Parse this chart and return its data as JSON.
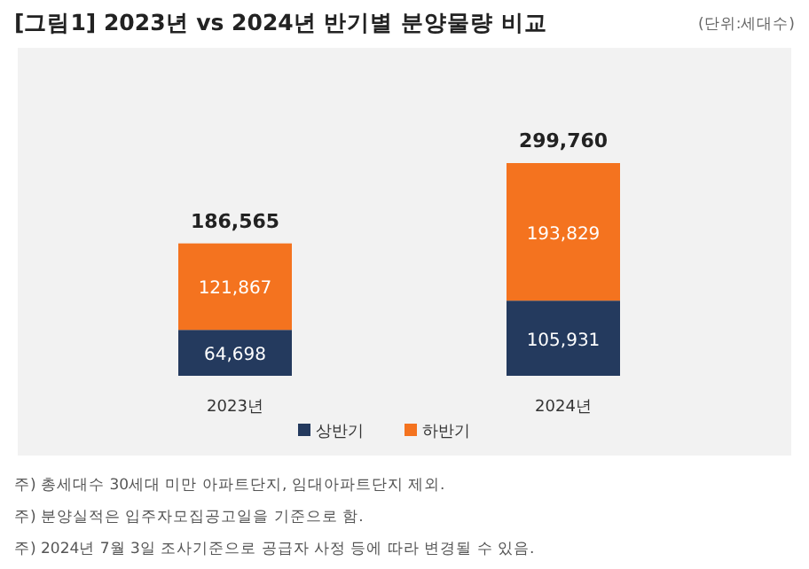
{
  "chart_data": {
    "type": "bar",
    "stacked": true,
    "title": "[그림1] 2023년 vs 2024년 반기별 분양물량 비교",
    "subtitle": "(단위:세대수)",
    "categories": [
      "2023년",
      "2024년"
    ],
    "series": [
      {
        "name": "상반기",
        "color": "#243a5e",
        "values": [
          64698,
          105931
        ],
        "value_labels": [
          "64,698",
          "105,931"
        ]
      },
      {
        "name": "하반기",
        "color": "#f4731f",
        "values": [
          121867,
          193829
        ],
        "value_labels": [
          "121,867",
          "193,829"
        ]
      }
    ],
    "totals": [
      "186,565",
      "299,760"
    ],
    "legend": "bottom",
    "annotations": [
      "주) 총세대수 30세대 미만 아파트단지, 임대아파트단지 제외.",
      "주) 분양실적은 입주자모집공고일을 기준으로 함.",
      "주) 2024년 7월 3일 조사기준으로 공급자 사정 등에 따라 변경될 수 있음."
    ]
  }
}
